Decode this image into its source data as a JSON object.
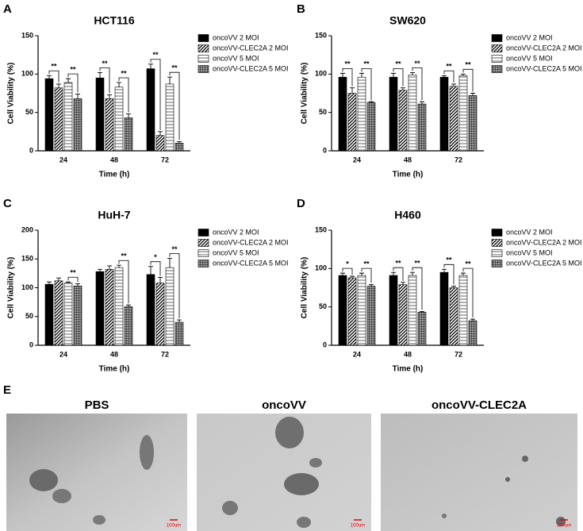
{
  "chart_data": [
    {
      "type": "bar",
      "label": "A",
      "title": "HCT116",
      "xlabel": "Time (h)",
      "ylabel": "Cell Viability (%)",
      "categories": [
        "24",
        "48",
        "72"
      ],
      "ylim": [
        0,
        150
      ],
      "yticks": [
        0,
        50,
        100,
        150
      ],
      "legend": "right",
      "series": [
        {
          "name": "oncoVV 2 MOI",
          "color": "#000000",
          "pattern": "solid",
          "values": [
            94,
            95,
            107
          ],
          "errors": [
            4,
            7,
            6
          ]
        },
        {
          "name": "oncoVV-CLEC2A 2 MOI",
          "color": "#000000",
          "pattern": "diagonal",
          "values": [
            82,
            68,
            20
          ],
          "errors": [
            5,
            5,
            5
          ]
        },
        {
          "name": "oncoVV 5 MOI",
          "color": "#555555",
          "pattern": "horizontal",
          "values": [
            89,
            83,
            87
          ],
          "errors": [
            5,
            6,
            9
          ]
        },
        {
          "name": "oncoVV-CLEC2A 5 MOI",
          "color": "#444444",
          "pattern": "grid",
          "values": [
            68,
            43,
            10
          ],
          "errors": [
            6,
            5,
            2
          ]
        }
      ],
      "annotations": [
        {
          "text": "**",
          "category": 0,
          "series": [
            0,
            1
          ]
        },
        {
          "text": "**",
          "category": 0,
          "series": [
            2,
            3
          ]
        },
        {
          "text": "**",
          "category": 1,
          "series": [
            0,
            1
          ]
        },
        {
          "text": "**",
          "category": 1,
          "series": [
            2,
            3
          ]
        },
        {
          "text": "**",
          "category": 2,
          "series": [
            0,
            1
          ]
        },
        {
          "text": "**",
          "category": 2,
          "series": [
            2,
            3
          ]
        }
      ]
    },
    {
      "type": "bar",
      "label": "B",
      "title": "SW620",
      "xlabel": "Time (h)",
      "ylabel": "Cell Viability (%)",
      "categories": [
        "24",
        "48",
        "72"
      ],
      "ylim": [
        0,
        150
      ],
      "yticks": [
        0,
        50,
        100,
        150
      ],
      "legend": "right",
      "series": [
        {
          "name": "oncoVV 2 MOI",
          "color": "#000000",
          "pattern": "solid",
          "values": [
            96,
            96,
            96
          ],
          "errors": [
            5,
            5,
            2
          ]
        },
        {
          "name": "oncoVV-CLEC2A 2 MOI",
          "color": "#000000",
          "pattern": "diagonal",
          "values": [
            75,
            79,
            84
          ],
          "errors": [
            7,
            3,
            3
          ]
        },
        {
          "name": "oncoVV 5 MOI",
          "color": "#555555",
          "pattern": "horizontal",
          "values": [
            96,
            99,
            98
          ],
          "errors": [
            5,
            3,
            2
          ]
        },
        {
          "name": "oncoVV-CLEC2A 5 MOI",
          "color": "#444444",
          "pattern": "grid",
          "values": [
            63,
            61,
            72
          ],
          "errors": [
            1,
            3,
            3
          ]
        }
      ],
      "annotations": [
        {
          "text": "**",
          "category": 0,
          "series": [
            0,
            1
          ]
        },
        {
          "text": "**",
          "category": 0,
          "series": [
            2,
            3
          ]
        },
        {
          "text": "**",
          "category": 1,
          "series": [
            0,
            1
          ]
        },
        {
          "text": "**",
          "category": 1,
          "series": [
            2,
            3
          ]
        },
        {
          "text": "**",
          "category": 2,
          "series": [
            0,
            1
          ]
        },
        {
          "text": "**",
          "category": 2,
          "series": [
            2,
            3
          ]
        }
      ]
    },
    {
      "type": "bar",
      "label": "C",
      "title": "HuH-7",
      "xlabel": "Time (h)",
      "ylabel": "Cell Viability (%)",
      "categories": [
        "24",
        "48",
        "72"
      ],
      "ylim": [
        0,
        200
      ],
      "yticks": [
        0,
        50,
        100,
        150,
        200
      ],
      "legend": "right",
      "series": [
        {
          "name": "oncoVV 2 MOI",
          "color": "#000000",
          "pattern": "solid",
          "values": [
            106,
            128,
            123
          ],
          "errors": [
            4,
            4,
            14
          ]
        },
        {
          "name": "oncoVV-CLEC2A 2 MOI",
          "color": "#000000",
          "pattern": "diagonal",
          "values": [
            112,
            132,
            108
          ],
          "errors": [
            5,
            6,
            10
          ]
        },
        {
          "name": "oncoVV 5 MOI",
          "color": "#555555",
          "pattern": "horizontal",
          "values": [
            108,
            135,
            135
          ],
          "errors": [
            2,
            4,
            16
          ]
        },
        {
          "name": "oncoVV-CLEC2A 5 MOI",
          "color": "#444444",
          "pattern": "grid",
          "values": [
            103,
            67,
            40
          ],
          "errors": [
            4,
            3,
            4
          ]
        }
      ],
      "annotations": [
        {
          "text": "**",
          "category": 0,
          "series": [
            2,
            3
          ]
        },
        {
          "text": "**",
          "category": 1,
          "series": [
            2,
            3
          ]
        },
        {
          "text": "*",
          "category": 2,
          "series": [
            0,
            1
          ]
        },
        {
          "text": "**",
          "category": 2,
          "series": [
            2,
            3
          ]
        }
      ]
    },
    {
      "type": "bar",
      "label": "D",
      "title": "H460",
      "xlabel": "Time (h)",
      "ylabel": "Cell Viability (%)",
      "categories": [
        "24",
        "48",
        "72"
      ],
      "ylim": [
        0,
        150
      ],
      "yticks": [
        0,
        50,
        100,
        150
      ],
      "legend": "right",
      "series": [
        {
          "name": "oncoVV 2 MOI",
          "color": "#000000",
          "pattern": "solid",
          "values": [
            91,
            91,
            95
          ],
          "errors": [
            3,
            4,
            4
          ]
        },
        {
          "name": "oncoVV-CLEC2A 2 MOI",
          "color": "#000000",
          "pattern": "diagonal",
          "values": [
            88,
            79,
            75
          ],
          "errors": [
            2,
            3,
            2
          ]
        },
        {
          "name": "oncoVV 5 MOI",
          "color": "#555555",
          "pattern": "horizontal",
          "values": [
            91,
            91,
            91
          ],
          "errors": [
            3,
            4,
            3
          ]
        },
        {
          "name": "oncoVV-CLEC2A 5 MOI",
          "color": "#444444",
          "pattern": "grid",
          "values": [
            77,
            43,
            32
          ],
          "errors": [
            2,
            1,
            2
          ]
        }
      ],
      "annotations": [
        {
          "text": "*",
          "category": 0,
          "series": [
            0,
            1
          ]
        },
        {
          "text": "**",
          "category": 0,
          "series": [
            2,
            3
          ]
        },
        {
          "text": "**",
          "category": 1,
          "series": [
            0,
            1
          ]
        },
        {
          "text": "**",
          "category": 1,
          "series": [
            2,
            3
          ]
        },
        {
          "text": "**",
          "category": 2,
          "series": [
            0,
            1
          ]
        },
        {
          "text": "**",
          "category": 2,
          "series": [
            2,
            3
          ]
        }
      ]
    }
  ],
  "image_panel": {
    "label": "E",
    "images": [
      {
        "title": "PBS",
        "scale_bar": "100um"
      },
      {
        "title": "oncoVV",
        "scale_bar": "100um"
      },
      {
        "title": "oncoVV-CLEC2A",
        "scale_bar": "100um"
      }
    ]
  }
}
